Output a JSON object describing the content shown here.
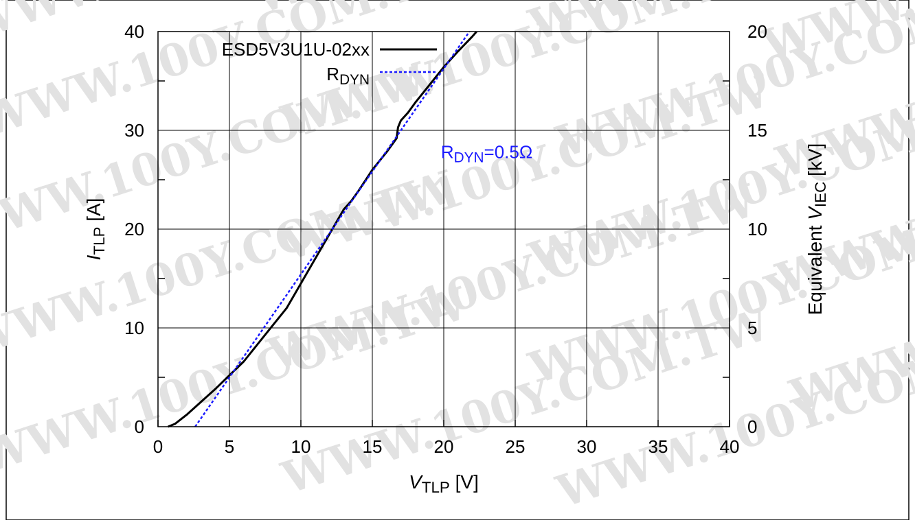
{
  "watermark": "WWW.100Y.COM.TW",
  "chart_data": {
    "type": "line",
    "xlabel": {
      "main": "V",
      "sub": "TLP",
      "unit": " [V]"
    },
    "ylabel": {
      "main": "I",
      "sub": "TLP",
      "unit": " [A]"
    },
    "y2label": {
      "prefix": "Equivalent ",
      "main": "V",
      "sub": "IEC",
      "unit": "  [kV]"
    },
    "xlim": [
      0,
      40
    ],
    "ylim": [
      0,
      40
    ],
    "y2lim": [
      0,
      20
    ],
    "x_ticks": [
      "0",
      "5",
      "10",
      "15",
      "20",
      "25",
      "30",
      "35",
      "40"
    ],
    "y_ticks": [
      "0",
      "10",
      "20",
      "30",
      "40"
    ],
    "y2_ticks": [
      "0",
      "5",
      "10",
      "15",
      "20"
    ],
    "grid": true,
    "legend_position": "top-left",
    "annotation": {
      "main": "R",
      "sub": "DYN",
      "tail": "=0.5Ω",
      "x": 19.8,
      "y": 27.2
    },
    "series": [
      {
        "name": "ESD5V3U1U-02xx",
        "color": "#000000",
        "dash": "solid",
        "x": [
          0.7,
          1.2,
          2.0,
          3.0,
          4.0,
          5.0,
          6.0,
          7.0,
          8.0,
          9.0,
          10.0,
          11.0,
          12.0,
          13.0,
          13.5,
          14.0,
          15.0,
          16.0,
          16.7,
          16.8,
          17.0,
          17.5,
          18.0,
          19.0,
          20.0,
          21.0,
          22.0,
          22.3
        ],
        "y": [
          0.0,
          0.3,
          1.2,
          2.5,
          3.8,
          5.2,
          6.6,
          8.4,
          10.2,
          12.0,
          14.5,
          17.0,
          19.5,
          22.0,
          22.8,
          23.8,
          26.0,
          27.8,
          29.2,
          30.3,
          31.0,
          31.8,
          32.8,
          34.6,
          36.4,
          38.0,
          39.5,
          40.0
        ]
      },
      {
        "name": "R",
        "name_sub": "DYN",
        "color": "#1a1aff",
        "dash": "dotted",
        "x": [
          2.6,
          21.8
        ],
        "y": [
          0.0,
          40.0
        ]
      }
    ]
  }
}
